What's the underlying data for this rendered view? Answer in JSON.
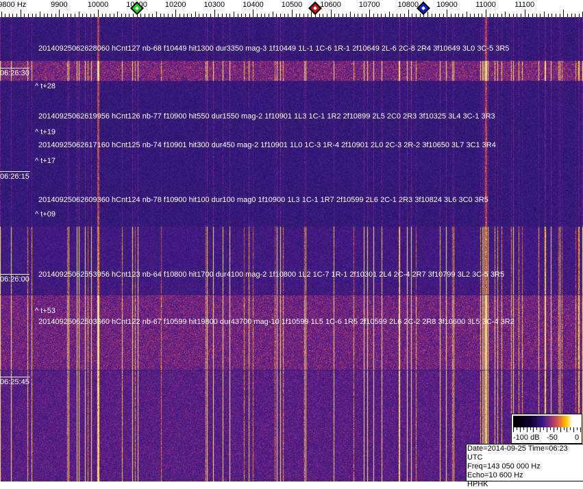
{
  "axis": {
    "labels": [
      "9800 Hz",
      "9900",
      "10000",
      "10100",
      "10200",
      "10300",
      "10400",
      "10500",
      "10600",
      "10700",
      "10800",
      "10900",
      "11000",
      "11100"
    ],
    "freqs": [
      9800,
      9900,
      10000,
      10100,
      10200,
      10300,
      10400,
      10500,
      10600,
      10700,
      10800,
      10900,
      11000,
      11100
    ]
  },
  "markers": [
    {
      "name": "green-marker",
      "freq": 10100,
      "color": "#22cc22"
    },
    {
      "name": "red-marker",
      "freq": 10560,
      "color": "#cc1111"
    },
    {
      "name": "blue-marker",
      "freq": 10840,
      "color": "#1122cc"
    }
  ],
  "time_labels": [
    "06:26:30",
    "06:26:15",
    "06:26:00",
    "06:25:45"
  ],
  "detections": [
    "20140925062628060 hCnt127 nb-68 f10449 hit1300 dur3350 mag-3 1f10449 1L-1 1C-6 1R-1 2f10649 2L-6 2C-8 2R4 3f10649 3L0 3C-5 3R5",
    "20140925062619956 hCnt126 nb-77 f10900 hit550 dur1550 mag-2 1f10901 1L3 1C-1 1R2 2f10899 2L5 2C0 2R3 3f10325 3L4 3C-1 3R3",
    "20140925062617160 hCnt125 nb-74 f10901 hit300 dur450 mag-2 1f10901 1L0 1C-3 1R-4 2f10901 2L0 2C-3 2R-2 3f10650 3L7 3C1 3R4",
    "20140925062609360 hCnt124 nb-78 f10900 hit100 dur100 mag0 1f10900 1L3 1C-1 1R7 2f10599 2L6 2C-1 2R3 3f10824 3L6 3C0 3R5",
    "20140925062553956 hCnt123 nb-64 f10800 hit1700 dur4100 mag-2 1f10800 1L2 1C-7 1R-1 2f10301 2L4 2C-4 2R7 3f10799 3L2 3C-5 3R5",
    "20140925062503360 hCnt122 nb-67 f10599 hit19800 dur43700 mag-10 1f10599 1L5 1C-6 1R5 2f10599 2L6 2C-2 2R8 3f10600 3L5 3C-4 3R2"
  ],
  "offsets": [
    "^ t+28",
    "^ t+19",
    "^ t+17",
    "^ t+09",
    "^ t+53"
  ],
  "colorbar": {
    "labels": [
      "-100 dB",
      "-50",
      "0"
    ]
  },
  "info": {
    "date_time": "Date=2014-09-25 Time=06:23 UTC",
    "freq": "Freq=143 050 000 Hz",
    "echo": "Echo=10 600 Hz",
    "station": "HPHK"
  }
}
